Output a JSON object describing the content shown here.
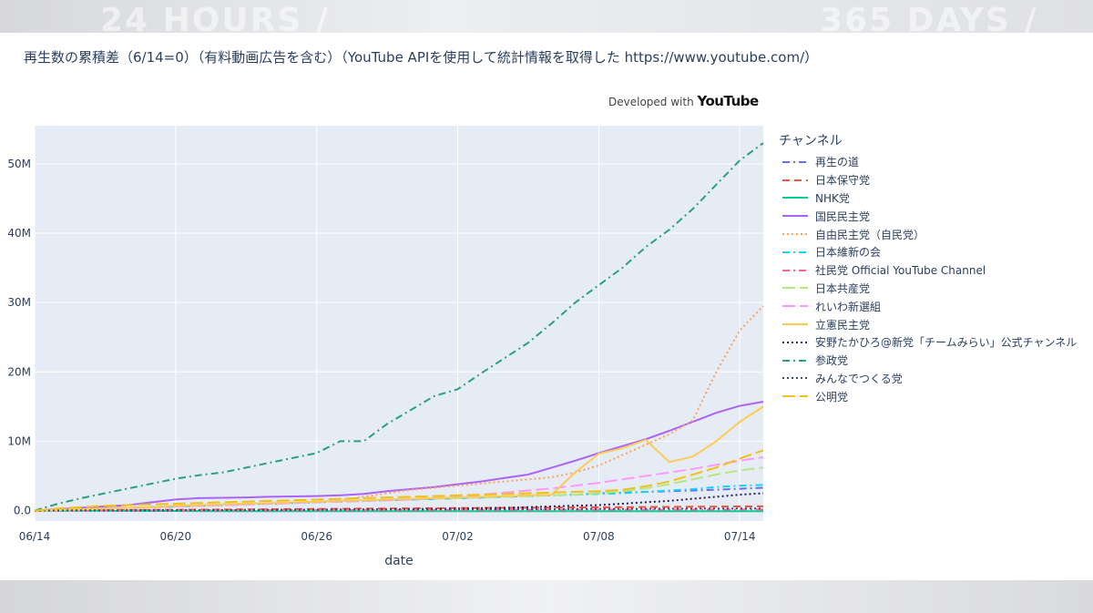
{
  "window": {
    "background_decor": [
      "24 HOURS /",
      "365 DAYS /"
    ]
  },
  "chart": {
    "title": "再生数の累積差（6/14=0）（有料動画広告を含む）（YouTube APIを使用して統計情報を取得した https://www.youtube.com/）",
    "credit_prefix": "Developed with",
    "credit_brand": "YouTube"
  },
  "chart_data": {
    "type": "line",
    "title": "再生数の累積差（6/14=0）（有料動画広告を含む）（YouTube APIを使用して統計情報を取得した https://www.youtube.com/）",
    "xlabel": "date",
    "ylabel": "",
    "x_ticks": [
      "06/14",
      "06/20",
      "06/26",
      "07/02",
      "07/08",
      "07/14"
    ],
    "y_ticks": [
      "0.0",
      "10M",
      "20M",
      "30M",
      "40M",
      "50M"
    ],
    "y_tick_values": [
      0,
      10000000,
      20000000,
      30000000,
      40000000,
      50000000
    ],
    "xlim": [
      "2025-06-14",
      "2025-07-15"
    ],
    "ylim": [
      -1500000,
      55500000
    ],
    "grid": true,
    "legend_title": "チャンネル",
    "legend_position": "right",
    "x": [
      "06/14",
      "06/15",
      "06/16",
      "06/17",
      "06/18",
      "06/19",
      "06/20",
      "06/21",
      "06/22",
      "06/23",
      "06/24",
      "06/25",
      "06/26",
      "06/27",
      "06/28",
      "06/29",
      "06/30",
      "07/01",
      "07/02",
      "07/03",
      "07/04",
      "07/05",
      "07/06",
      "07/07",
      "07/08",
      "07/09",
      "07/10",
      "07/11",
      "07/12",
      "07/13",
      "07/14",
      "07/15"
    ],
    "series": [
      {
        "name": "再生の道",
        "color": "#636efa",
        "dash": "dashdot",
        "values": [
          0,
          100000,
          200000,
          300000,
          400000,
          500000,
          600000,
          700000,
          800000,
          900000,
          1000000,
          1100000,
          1200000,
          1300000,
          1400000,
          1500000,
          1600000,
          1700000,
          1800000,
          1900000,
          2000000,
          2100000,
          2200000,
          2300000,
          2500000,
          2600000,
          2700000,
          2800000,
          2900000,
          3000000,
          3150000,
          3300000
        ]
      },
      {
        "name": "日本保守党",
        "color": "#ef553b",
        "dash": "dash",
        "values": [
          0,
          20000,
          40000,
          60000,
          80000,
          100000,
          120000,
          140000,
          160000,
          180000,
          200000,
          220000,
          240000,
          260000,
          280000,
          300000,
          320000,
          340000,
          360000,
          380000,
          400000,
          420000,
          440000,
          460000,
          480000,
          500000,
          520000,
          540000,
          560000,
          580000,
          600000,
          620000
        ]
      },
      {
        "name": "NHK党",
        "color": "#00cc96",
        "dash": "solid",
        "values": [
          0,
          -10000,
          -20000,
          -30000,
          -40000,
          -50000,
          -60000,
          -70000,
          -80000,
          -90000,
          -100000,
          -100000,
          -100000,
          -100000,
          -100000,
          -100000,
          -100000,
          -100000,
          -100000,
          -100000,
          -100000,
          -100000,
          -100000,
          -100000,
          -100000,
          -100000,
          -100000,
          -100000,
          -100000,
          -100000,
          -100000,
          -100000
        ]
      },
      {
        "name": "国民民主党",
        "color": "#ab63fa",
        "dash": "solid",
        "values": [
          0,
          200000,
          400000,
          600000,
          800000,
          1200000,
          1600000,
          1800000,
          1850000,
          1900000,
          2000000,
          2050000,
          2100000,
          2200000,
          2400000,
          2800000,
          3100000,
          3400000,
          3800000,
          4200000,
          4700000,
          5200000,
          6200000,
          7200000,
          8300000,
          9300000,
          10300000,
          11500000,
          12800000,
          14100000,
          15100000,
          15700000
        ]
      },
      {
        "name": "自由民主党（自民党）",
        "color": "#ffa15a",
        "dash": "dot",
        "values": [
          0,
          100000,
          200000,
          300000,
          400000,
          500000,
          600000,
          700000,
          800000,
          900000,
          1000000,
          1150000,
          1300000,
          1500000,
          2000000,
          2500000,
          3000000,
          3300000,
          3600000,
          3900000,
          4200000,
          4500000,
          4800000,
          5500000,
          6500000,
          8000000,
          9500000,
          11000000,
          13000000,
          20000000,
          26000000,
          29500000
        ]
      },
      {
        "name": "日本維新の会",
        "color": "#19d3f3",
        "dash": "dashdot",
        "values": [
          0,
          100000,
          200000,
          300000,
          400000,
          500000,
          600000,
          700000,
          800000,
          900000,
          1000000,
          1100000,
          1200000,
          1300000,
          1400000,
          1500000,
          1600000,
          1700000,
          1800000,
          1900000,
          2000000,
          2100000,
          2200000,
          2300000,
          2400000,
          2500000,
          2700000,
          2900000,
          3100000,
          3400000,
          3600000,
          3700000
        ]
      },
      {
        "name": "社民党 Official YouTube Channel",
        "color": "#ff6692",
        "dash": "dashdot",
        "values": [
          0,
          5000,
          10000,
          15000,
          20000,
          25000,
          30000,
          35000,
          40000,
          45000,
          50000,
          55000,
          60000,
          65000,
          70000,
          75000,
          80000,
          85000,
          90000,
          95000,
          100000,
          105000,
          110000,
          115000,
          120000,
          125000,
          130000,
          135000,
          140000,
          145000,
          150000,
          155000
        ]
      },
      {
        "name": "日本共産党",
        "color": "#b6e880",
        "dash": "longdash",
        "values": [
          0,
          100000,
          200000,
          300000,
          400000,
          500000,
          600000,
          700000,
          800000,
          900000,
          1000000,
          1100000,
          1200000,
          1300000,
          1400000,
          1500000,
          1600000,
          1700000,
          1800000,
          1900000,
          2000000,
          2100000,
          2200000,
          2300000,
          2500000,
          2800000,
          3200000,
          3800000,
          4500000,
          5200000,
          5800000,
          6200000
        ]
      },
      {
        "name": "れいわ新選組",
        "color": "#ff97ff",
        "dash": "longdash",
        "values": [
          0,
          100000,
          200000,
          300000,
          400000,
          500000,
          600000,
          700000,
          800000,
          900000,
          1000000,
          1100000,
          1200000,
          1300000,
          1400000,
          1500000,
          1600000,
          1800000,
          2000000,
          2300000,
          2600000,
          2900000,
          3200000,
          3600000,
          4000000,
          4500000,
          5000000,
          5500000,
          6000000,
          6600000,
          7200000,
          7700000
        ]
      },
      {
        "name": "立憲民主党",
        "color": "#fecb52",
        "dash": "solid",
        "values": [
          0,
          100000,
          200000,
          300000,
          400000,
          500000,
          700000,
          800000,
          900000,
          1000000,
          1100000,
          1200000,
          1300000,
          1400000,
          1500000,
          1600000,
          1700000,
          1800000,
          1900000,
          2000000,
          2100000,
          2200000,
          2300000,
          5500000,
          8200000,
          9000000,
          10200000,
          7000000,
          7800000,
          10000000,
          12800000,
          15000000
        ]
      },
      {
        "name": "安野たかひろ@新党「チームみらい」公式チャンネル",
        "color": "#2b1f5c",
        "dash": "dot",
        "values": [
          0,
          10000,
          20000,
          30000,
          40000,
          50000,
          60000,
          70000,
          80000,
          90000,
          100000,
          120000,
          140000,
          160000,
          180000,
          200000,
          220000,
          250000,
          300000,
          350000,
          400000,
          500000,
          600000,
          700000,
          800000,
          1000000,
          1200000,
          1400000,
          1700000,
          2000000,
          2300000,
          2500000
        ]
      },
      {
        "name": "参政党",
        "color": "#2ca07a",
        "dash": "dashdot",
        "values": [
          0,
          1000000,
          1800000,
          2500000,
          3200000,
          3900000,
          4600000,
          5100000,
          5500000,
          6200000,
          6900000,
          7600000,
          8300000,
          10000000,
          10000000,
          12500000,
          14500000,
          16500000,
          17500000,
          19800000,
          22000000,
          24200000,
          27000000,
          30000000,
          32500000,
          35000000,
          38000000,
          40500000,
          43500000,
          47000000,
          50500000,
          53000000
        ]
      },
      {
        "name": "みんなでつくる党",
        "color": "#3d4a80",
        "dash": "dot",
        "values": [
          0,
          10000,
          20000,
          30000,
          40000,
          50000,
          60000,
          70000,
          80000,
          90000,
          100000,
          110000,
          120000,
          130000,
          140000,
          150000,
          160000,
          170000,
          180000,
          190000,
          200000,
          210000,
          220000,
          230000,
          240000,
          250000,
          260000,
          270000,
          280000,
          290000,
          300000,
          310000
        ]
      },
      {
        "name": "公明党",
        "color": "#f0c020",
        "dash": "longdash",
        "values": [
          0,
          300000,
          500000,
          700000,
          800000,
          900000,
          1000000,
          1100000,
          1200000,
          1300000,
          1400000,
          1500000,
          1600000,
          1700000,
          1800000,
          1900000,
          2000000,
          2100000,
          2200000,
          2300000,
          2400000,
          2500000,
          2600000,
          2700000,
          2800000,
          3000000,
          3500000,
          4200000,
          5200000,
          6200000,
          7500000,
          8700000
        ]
      }
    ]
  }
}
